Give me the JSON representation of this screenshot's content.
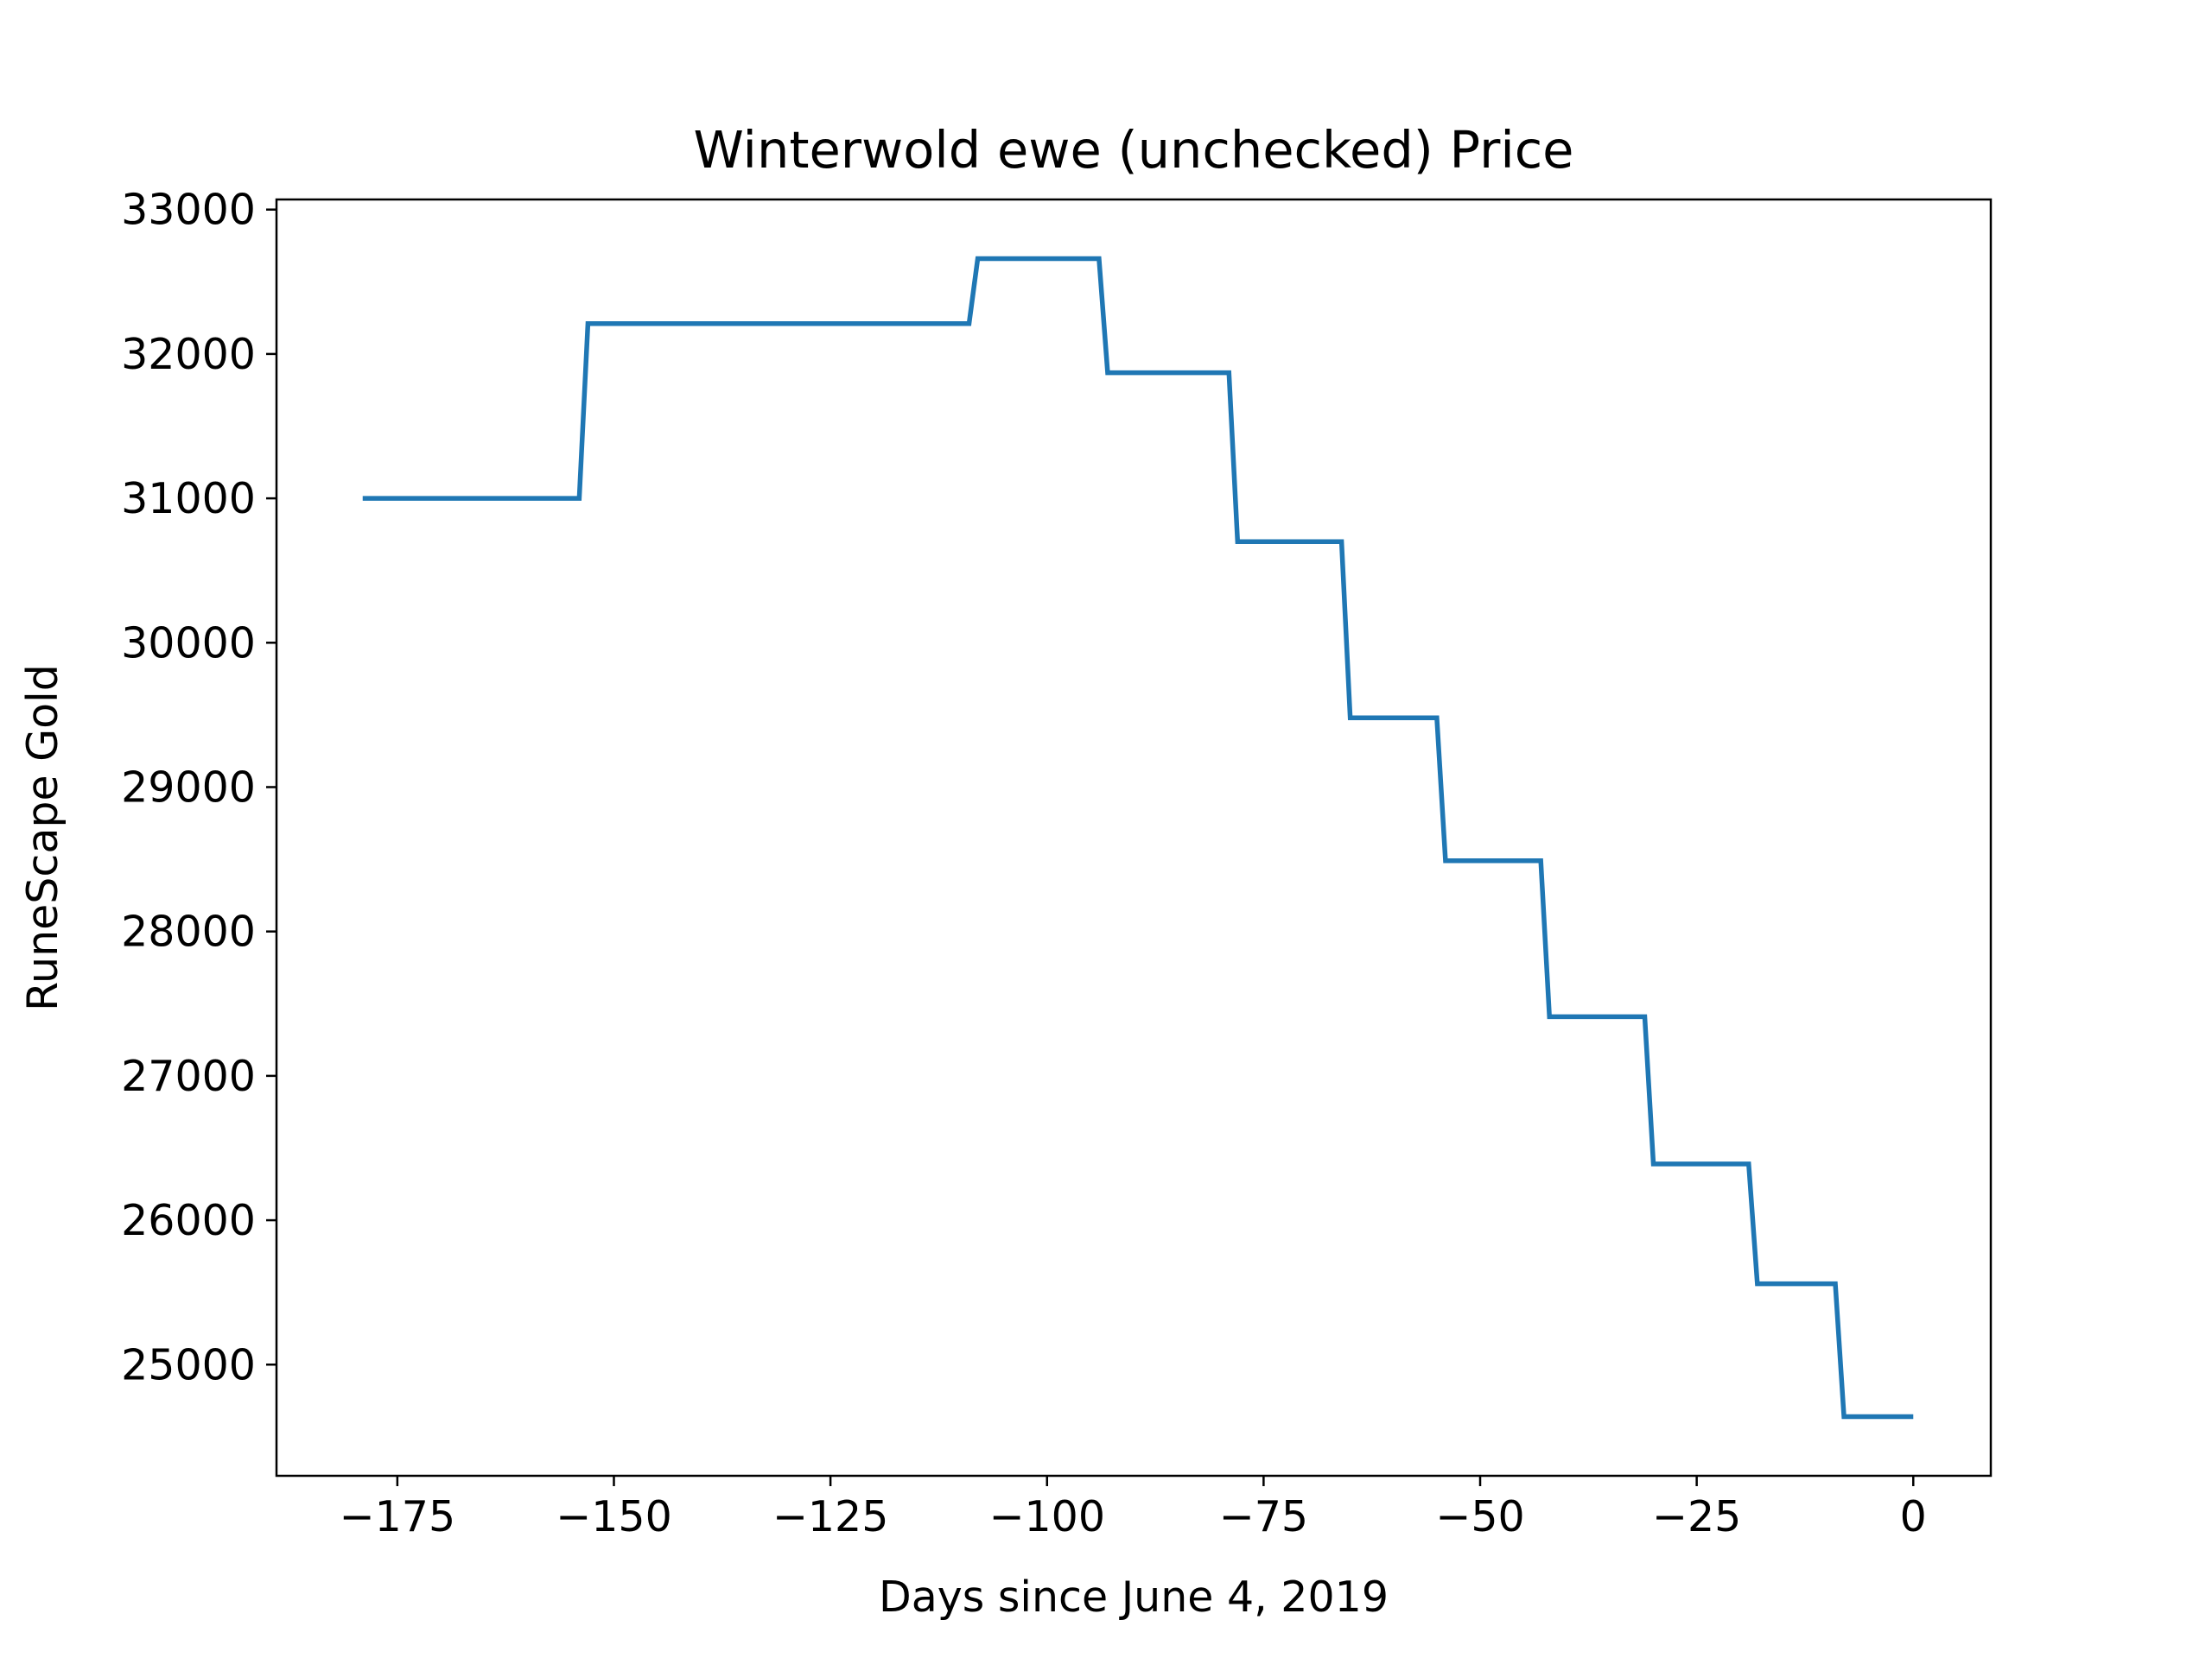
{
  "chart_data": {
    "type": "line",
    "title": "Winterwold ewe (unchecked) Price",
    "xlabel": "Days since June 4, 2019",
    "ylabel": "RuneScape Gold",
    "xlim": [
      -188.95,
      8.95
    ],
    "ylim": [
      24230,
      33070
    ],
    "xticks": [
      -175,
      -150,
      -125,
      -100,
      -75,
      -50,
      -25,
      0
    ],
    "xtick_labels": [
      "−175",
      "−150",
      "−125",
      "−100",
      "−75",
      "−50",
      "−25",
      "0"
    ],
    "yticks": [
      25000,
      26000,
      27000,
      28000,
      29000,
      30000,
      31000,
      32000,
      33000
    ],
    "ytick_labels": [
      "25000",
      "26000",
      "27000",
      "28000",
      "29000",
      "30000",
      "31000",
      "32000",
      "33000"
    ],
    "grid": false,
    "series": [
      {
        "color": "#1f77b4",
        "points": [
          [
            -179,
            31000
          ],
          [
            -154,
            31000
          ],
          [
            -153,
            32210
          ],
          [
            -109,
            32210
          ],
          [
            -108,
            32660
          ],
          [
            -94,
            32660
          ],
          [
            -93,
            31870
          ],
          [
            -79,
            31870
          ],
          [
            -78,
            30700
          ],
          [
            -66,
            30700
          ],
          [
            -65,
            29480
          ],
          [
            -55,
            29480
          ],
          [
            -54,
            28490
          ],
          [
            -43,
            28490
          ],
          [
            -42,
            27410
          ],
          [
            -31,
            27410
          ],
          [
            -30,
            26390
          ],
          [
            -19,
            26390
          ],
          [
            -18,
            25560
          ],
          [
            -9,
            25560
          ],
          [
            -8,
            24640
          ],
          [
            0,
            24640
          ]
        ]
      }
    ]
  }
}
